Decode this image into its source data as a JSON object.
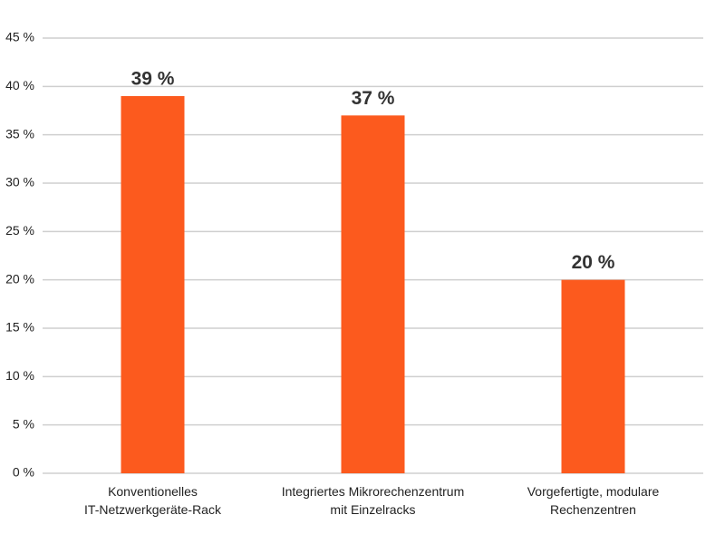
{
  "chart_data": {
    "type": "bar",
    "categories": [
      "Konventionelles\nIT-Netzwerkgeräte-Rack",
      "Integriertes Mikrorechenzentrum\nmit Einzelracks",
      "Vorgefertigte, modulare\nRechenzentren"
    ],
    "values": [
      39,
      37,
      20
    ],
    "value_labels": [
      "39 %",
      "37 %",
      "20 %"
    ],
    "color": "#fc5a1e",
    "ylim": [
      0,
      45
    ],
    "yticks": [
      {
        "value": 0,
        "label": "0 %"
      },
      {
        "value": 5,
        "label": "5 %"
      },
      {
        "value": 10,
        "label": "10 %"
      },
      {
        "value": 15,
        "label": "15 %"
      },
      {
        "value": 20,
        "label": "20 %"
      },
      {
        "value": 25,
        "label": "25 %"
      },
      {
        "value": 30,
        "label": "30 %"
      },
      {
        "value": 35,
        "label": "35 %"
      },
      {
        "value": 40,
        "label": "40 %"
      },
      {
        "value": 45,
        "label": "45 %"
      }
    ],
    "grid": true
  }
}
